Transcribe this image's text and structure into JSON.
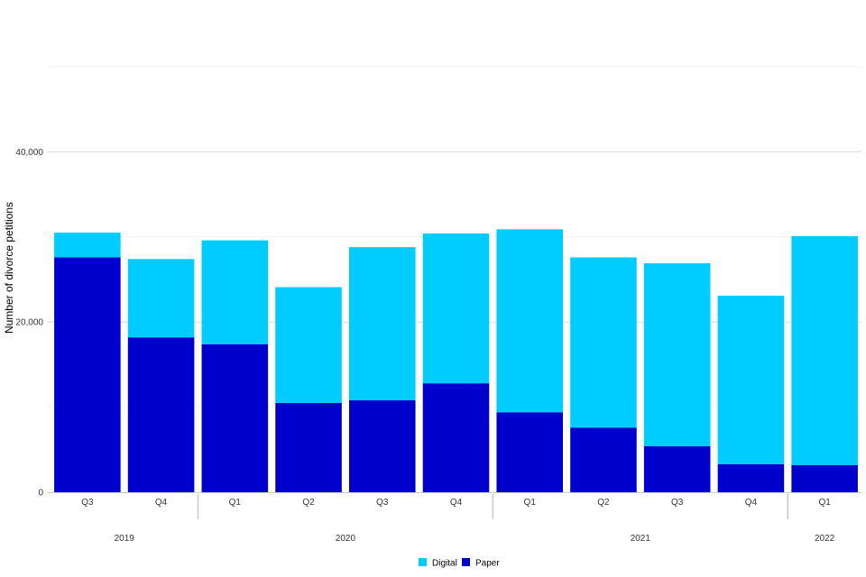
{
  "chart_data": {
    "type": "bar",
    "stacked": true,
    "title": "",
    "xlabel": "",
    "ylabel": "Number of divorce petitions",
    "ylim": [
      0,
      50000
    ],
    "yticks": [
      0,
      20000,
      40000
    ],
    "ytick_labels": [
      "0",
      "20,000",
      "40,000"
    ],
    "grid": true,
    "legend_position": "bottom-center",
    "categories": [
      "Q3",
      "Q4",
      "Q1",
      "Q2",
      "Q3",
      "Q4",
      "Q1",
      "Q2",
      "Q3",
      "Q4",
      "Q1"
    ],
    "years": [
      {
        "label": "2019",
        "start": 0,
        "end": 1
      },
      {
        "label": "2020",
        "start": 2,
        "end": 5
      },
      {
        "label": "2021",
        "start": 6,
        "end": 9
      },
      {
        "label": "2022",
        "start": 10,
        "end": 10
      }
    ],
    "series": [
      {
        "name": "Paper",
        "color": "#0000cc",
        "values": [
          27600,
          18200,
          17400,
          10500,
          10800,
          12800,
          9400,
          7600,
          5400,
          3300,
          3200
        ]
      },
      {
        "name": "Digital",
        "color": "#00ccff",
        "values": [
          2900,
          9200,
          12200,
          13600,
          18000,
          17600,
          21500,
          20000,
          21500,
          19800,
          26900
        ]
      }
    ],
    "legend": [
      {
        "name": "Digital",
        "color": "#00ccff"
      },
      {
        "name": "Paper",
        "color": "#0000cc"
      }
    ]
  }
}
